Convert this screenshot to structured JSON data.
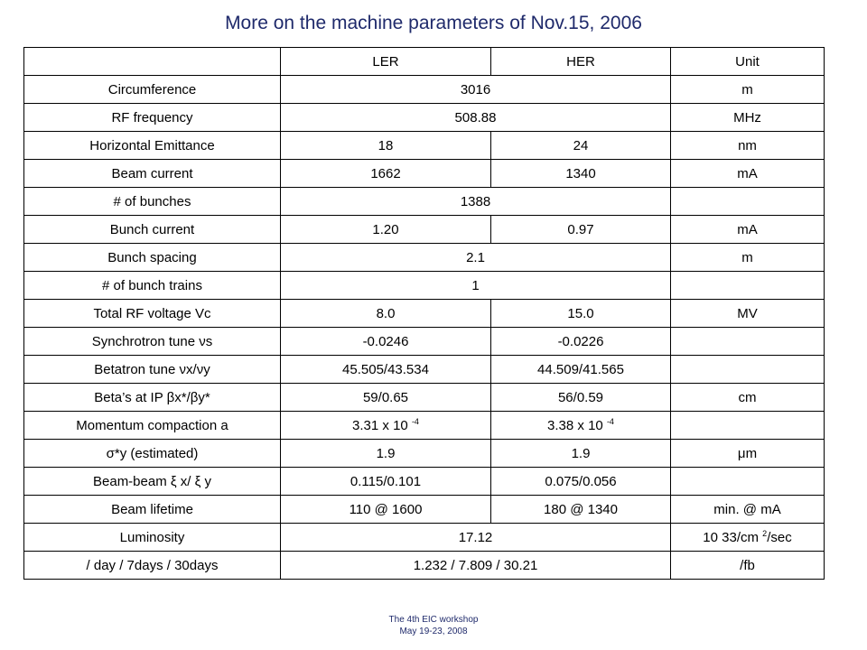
{
  "title": "More on the machine parameters of Nov.15, 2006",
  "header": {
    "lower_label": "",
    "ler": "LER",
    "her": "HER",
    "unit": "Unit"
  },
  "rows": [
    {
      "param": "Circumference",
      "span": "3016",
      "unit": "m"
    },
    {
      "param": "RF frequency",
      "span": "508.88",
      "unit": "MHz"
    },
    {
      "param": "Horizontal Emittance",
      "ler": "18",
      "her": "24",
      "unit": "nm"
    },
    {
      "param": "Beam current",
      "ler": "1662",
      "her": "1340",
      "unit": "mA"
    },
    {
      "param": "# of bunches",
      "span": "1388",
      "unit": ""
    },
    {
      "param": "Bunch current",
      "ler": "1.20",
      "her": "0.97",
      "unit": "mA"
    },
    {
      "param": "Bunch spacing",
      "span": "2.1",
      "unit": "m"
    },
    {
      "param": "# of bunch trains",
      "span": "1",
      "unit": ""
    },
    {
      "param": "Total RF voltage Vc",
      "ler": "8.0",
      "her": "15.0",
      "unit": "MV"
    },
    {
      "param": "Synchrotron tune νs",
      "ler": "-0.0246",
      "her": "-0.0226",
      "unit": ""
    },
    {
      "param": "Betatron tune νx/νy",
      "ler": "45.505/43.534",
      "her": "44.509/41.565",
      "unit": ""
    },
    {
      "param": "Beta’s at IP βx*/βy*",
      "ler": "59/0.65",
      "her": "56/0.59",
      "unit": "cm"
    },
    {
      "param": "Momentum compaction a",
      "ler": "3.31 x 10",
      "ler_sup": "-4",
      "her": "3.38 x 10",
      "her_sup": "-4",
      "unit": ""
    },
    {
      "param": "σ*y (estimated)",
      "ler": "1.9",
      "her": "1.9",
      "unit": "μm"
    },
    {
      "param": "Beam-beam ξ x/ ξ y",
      "ler": "0.115/0.101",
      "her": "0.075/0.056",
      "unit": ""
    },
    {
      "param": "Beam lifetime",
      "ler": "110 @ 1600",
      "her": "180 @ 1340",
      "unit": "min. @ mA"
    },
    {
      "param": "Luminosity",
      "span": "17.12",
      "unit": "10 33/cm",
      "unit_sup": "2",
      "unit_after": "/sec"
    },
    {
      "param": "/ day / 7days / 30days",
      "span": "1.232 / 7.809 / 30.21",
      "unit": "/fb"
    }
  ],
  "footer": {
    "line1": "The 4th EIC workshop",
    "line2": "May 19-23, 2008"
  }
}
